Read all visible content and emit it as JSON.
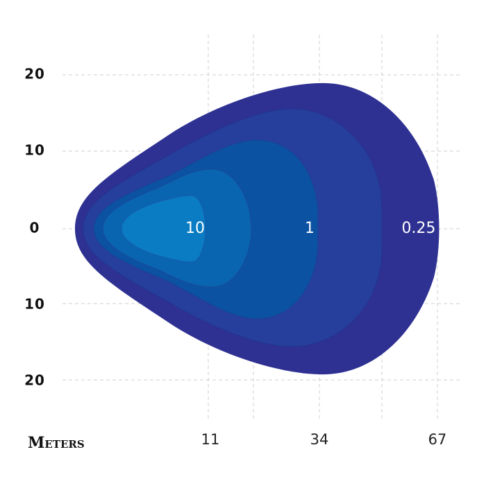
{
  "y_axis": {
    "labels": [
      "20",
      "10",
      "0",
      "10",
      "20"
    ]
  },
  "x_axis": {
    "title": "Meters",
    "labels": [
      "11",
      "34",
      "67"
    ]
  },
  "contours": {
    "labels": [
      "10",
      "1",
      "0.25"
    ]
  }
}
